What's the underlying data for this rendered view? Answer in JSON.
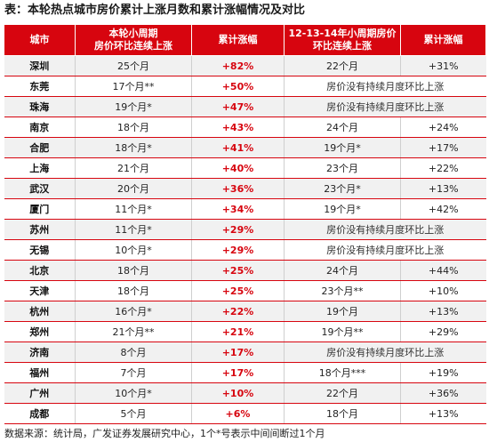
{
  "title": "表：本轮热点城市房价累计上涨月数和累计涨幅情况及对比",
  "headers": {
    "city": "城市",
    "months_current_line1": "本轮小周期",
    "months_current_line2": "房价环比连续上涨",
    "rise_current": "累计涨幅",
    "months_prev_line1": "12-13-14年小周期房价",
    "months_prev_line2": "环比连续上涨",
    "rise_prev": "累计涨幅"
  },
  "rows": [
    {
      "city": "深圳",
      "months_current": "25个月",
      "rise_current": "+82%",
      "months_prev": "22个月",
      "rise_prev": "+31%"
    },
    {
      "city": "东莞",
      "months_current": "17个月**",
      "rise_current": "+50%",
      "merged_note": "房价没有持续月度环比上涨"
    },
    {
      "city": "珠海",
      "months_current": "19个月*",
      "rise_current": "+47%",
      "merged_note": "房价没有持续月度环比上涨"
    },
    {
      "city": "南京",
      "months_current": "18个月",
      "rise_current": "+43%",
      "months_prev": "24个月",
      "rise_prev": "+24%"
    },
    {
      "city": "合肥",
      "months_current": "18个月*",
      "rise_current": "+41%",
      "months_prev": "19个月*",
      "rise_prev": "+17%"
    },
    {
      "city": "上海",
      "months_current": "21个月",
      "rise_current": "+40%",
      "months_prev": "23个月",
      "rise_prev": "+22%"
    },
    {
      "city": "武汉",
      "months_current": "20个月",
      "rise_current": "+36%",
      "months_prev": "23个月*",
      "rise_prev": "+13%"
    },
    {
      "city": "厦门",
      "months_current": "11个月*",
      "rise_current": "+34%",
      "months_prev": "19个月*",
      "rise_prev": "+42%"
    },
    {
      "city": "苏州",
      "months_current": "11个月*",
      "rise_current": "+29%",
      "merged_note": "房价没有持续月度环比上涨"
    },
    {
      "city": "无锡",
      "months_current": "10个月*",
      "rise_current": "+29%",
      "merged_note": "房价没有持续月度环比上涨"
    },
    {
      "city": "北京",
      "months_current": "18个月",
      "rise_current": "+25%",
      "months_prev": "24个月",
      "rise_prev": "+44%"
    },
    {
      "city": "天津",
      "months_current": "18个月",
      "rise_current": "+25%",
      "months_prev": "23个月**",
      "rise_prev": "+10%"
    },
    {
      "city": "杭州",
      "months_current": "16个月*",
      "rise_current": "+22%",
      "months_prev": "19个月",
      "rise_prev": "+13%"
    },
    {
      "city": "郑州",
      "months_current": "21个月**",
      "rise_current": "+21%",
      "months_prev": "19个月**",
      "rise_prev": "+29%"
    },
    {
      "city": "济南",
      "months_current": "8个月",
      "rise_current": "+17%",
      "merged_note": "房价没有持续月度环比上涨"
    },
    {
      "city": "福州",
      "months_current": "7个月",
      "rise_current": "+17%",
      "months_prev": "18个月***",
      "rise_prev": "+19%"
    },
    {
      "city": "广州",
      "months_current": "10个月*",
      "rise_current": "+10%",
      "months_prev": "22个月",
      "rise_prev": "+36%"
    },
    {
      "city": "成都",
      "months_current": "5个月",
      "rise_current": "+6%",
      "months_prev": "18个月",
      "rise_prev": "+13%"
    }
  ],
  "source": "数据来源：统计局，广发证券发展研究中心，1个*号表示中间间断过1个月",
  "colors": {
    "header_bg": "#d7050f",
    "header_text": "#ffffff",
    "row_alt_bg": "#f1f1f1",
    "highlight_text": "#d7050f"
  }
}
